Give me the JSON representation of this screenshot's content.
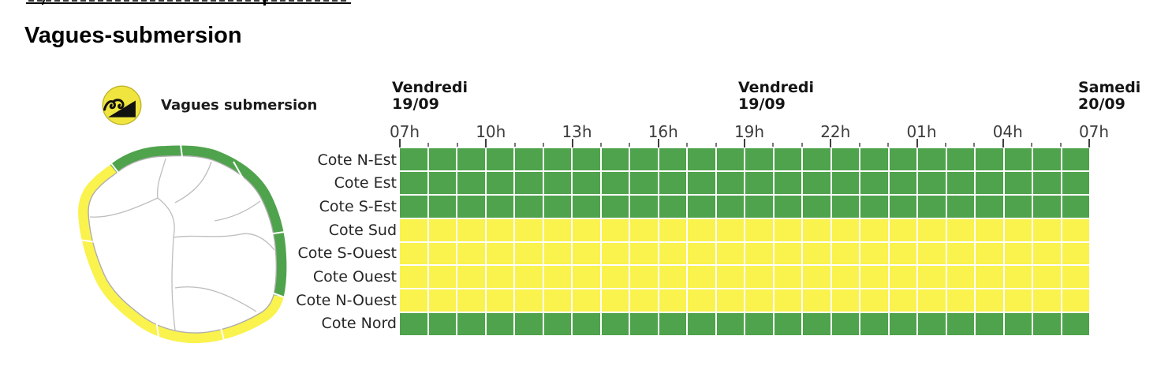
{
  "section": {
    "title": "Vagues-submersion"
  },
  "legend": {
    "label": "Vagues submersion",
    "icon": "waves-submersion-icon",
    "icon_color": "#EFE53E"
  },
  "chart_data": {
    "type": "heatmap",
    "title": "Vagues submersion",
    "x_axis": {
      "day_headers": [
        {
          "day": "Vendredi",
          "date": "19/09",
          "hour_index": 0
        },
        {
          "day": "Vendredi",
          "date": "19/09",
          "hour_index": 12
        },
        {
          "day": "Samedi",
          "date": "20/09",
          "hour_index": 24
        }
      ],
      "hour_labels": [
        "07h",
        "10h",
        "13h",
        "16h",
        "19h",
        "22h",
        "01h",
        "04h",
        "07h"
      ],
      "hours_total": 24,
      "minor_tick_every_hours": 1,
      "major_tick_every_hours": 3
    },
    "rows": [
      {
        "label": "Cote N-Est",
        "level": "vert"
      },
      {
        "label": "Cote Est",
        "level": "vert"
      },
      {
        "label": "Cote S-Est",
        "level": "vert"
      },
      {
        "label": "Cote Sud",
        "level": "jaune"
      },
      {
        "label": "Cote S-Ouest",
        "level": "jaune"
      },
      {
        "label": "Cote Ouest",
        "level": "jaune"
      },
      {
        "label": "Cote N-Ouest",
        "level": "jaune"
      },
      {
        "label": "Cote Nord",
        "level": "vert"
      }
    ],
    "columns_per_row": 24,
    "level_colors": {
      "vert": "#4FA34C",
      "jaune": "#FAF24D"
    },
    "grid_line_color": "#FFFFFF",
    "legend_position": "top-left",
    "grid": true
  },
  "map": {
    "coast_levels": {
      "Cote Nord": "vert",
      "Cote N-Est": "vert",
      "Cote Est": "vert",
      "Cote S-Est": "vert",
      "Cote Sud": "jaune",
      "Cote S-Ouest": "jaune",
      "Cote Ouest": "jaune",
      "Cote N-Ouest": "jaune"
    }
  }
}
